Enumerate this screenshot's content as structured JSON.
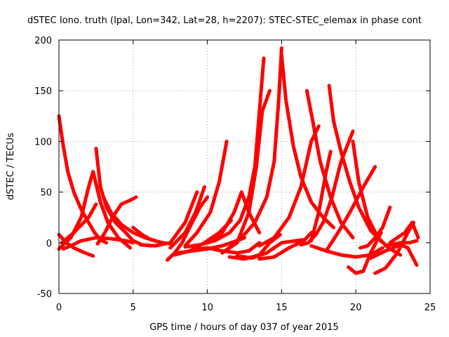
{
  "chart_data": {
    "type": "scatter",
    "title": "dSTEC Iono. truth (Ipal, Lon=342, Lat=28, h=2207): STEC-STEC_elemax in phase cont",
    "xlabel": "GPS time / hours of day 037 of year 2015",
    "ylabel": "dSTEC  / TECUs",
    "xlim": [
      0,
      25
    ],
    "ylim": [
      -50,
      200
    ],
    "xticks": [
      0,
      5,
      10,
      15,
      20,
      25
    ],
    "yticks": [
      -50,
      0,
      50,
      100,
      150,
      200
    ],
    "grid": true,
    "marker": "+",
    "series_color": "#ff0000",
    "series": [
      {
        "x": [
          0,
          0.3,
          0.6,
          1.0,
          1.5,
          2.0,
          2.4,
          2.8,
          3.2
        ],
        "y": [
          125,
          95,
          70,
          50,
          33,
          20,
          10,
          3,
          0
        ]
      },
      {
        "x": [
          0,
          0.8,
          1.5,
          2.0,
          2.3
        ],
        "y": [
          -6,
          5,
          25,
          55,
          70
        ]
      },
      {
        "x": [
          2.3,
          2.8,
          3.3,
          4.0,
          4.8
        ],
        "y": [
          70,
          40,
          20,
          5,
          -5
        ]
      },
      {
        "x": [
          2.5,
          2.8,
          3.2,
          3.8,
          4.5,
          5.0,
          5.6,
          6.2
        ],
        "y": [
          93,
          55,
          35,
          20,
          10,
          2,
          -2,
          -3
        ]
      },
      {
        "x": [
          0.3,
          0.8,
          1.5,
          2.5,
          3.5,
          4.5,
          5.0
        ],
        "y": [
          -6,
          -3,
          2,
          5,
          4,
          2,
          0
        ]
      },
      {
        "x": [
          0,
          0.5,
          1.0,
          1.6,
          2.3
        ],
        "y": [
          8,
          0,
          -5,
          -9,
          -13
        ]
      },
      {
        "x": [
          0.2,
          1.0,
          2.0,
          2.5
        ],
        "y": [
          0,
          10,
          25,
          38
        ]
      },
      {
        "x": [
          2.6,
          3.1,
          3.6,
          4.2,
          4.8,
          5.2
        ],
        "y": [
          -1,
          10,
          25,
          38,
          42,
          45
        ]
      },
      {
        "x": [
          3.0,
          3.5,
          4.2,
          5.0,
          5.8,
          6.5
        ],
        "y": [
          45,
          30,
          18,
          10,
          5,
          2
        ]
      },
      {
        "x": [
          5.0,
          5.6,
          6.2,
          7.0,
          7.5
        ],
        "y": [
          15,
          8,
          3,
          0,
          -1
        ]
      },
      {
        "x": [
          5.5,
          6.5,
          7.5,
          8.5,
          9.3
        ],
        "y": [
          -2,
          -3,
          0,
          20,
          50
        ]
      },
      {
        "x": [
          7.3,
          7.8,
          8.3,
          8.8,
          9.5,
          10.0
        ],
        "y": [
          -17,
          -10,
          0,
          15,
          35,
          45
        ]
      },
      {
        "x": [
          7.5,
          8.5,
          9.2,
          9.8
        ],
        "y": [
          -5,
          10,
          30,
          55
        ]
      },
      {
        "x": [
          8.5,
          9.3,
          10.2,
          10.8,
          11.3
        ],
        "y": [
          -3,
          10,
          30,
          60,
          100
        ]
      },
      {
        "x": [
          7.8,
          8.8,
          9.8,
          10.8,
          11.6
        ],
        "y": [
          -12,
          -8,
          0,
          10,
          22
        ]
      },
      {
        "x": [
          8.0,
          9.0,
          10.0,
          11.0,
          12.0,
          12.5
        ],
        "y": [
          -10,
          -8,
          -6,
          -3,
          2,
          5
        ]
      },
      {
        "x": [
          10.0,
          11.0,
          11.8,
          12.3,
          12.8,
          13.5
        ],
        "y": [
          0,
          10,
          30,
          50,
          30,
          10
        ]
      },
      {
        "x": [
          8.5,
          9.5,
          10.5,
          11.5,
          12.2,
          12.8,
          13.2,
          13.8
        ],
        "y": [
          -4,
          -2,
          2,
          10,
          22,
          45,
          75,
          182
        ]
      },
      {
        "x": [
          9.0,
          10.0,
          11.0,
          12.0,
          12.8,
          13.5
        ],
        "y": [
          -7,
          -5,
          -8,
          -10,
          -8,
          0
        ]
      },
      {
        "x": [
          11.0,
          12.0,
          12.8,
          13.3,
          13.7,
          14.2
        ],
        "y": [
          -10,
          0,
          30,
          75,
          130,
          150
        ]
      },
      {
        "x": [
          11.2,
          12.3,
          13.2,
          14.0,
          14.5,
          14.8,
          15.0
        ],
        "y": [
          -8,
          5,
          20,
          45,
          80,
          140,
          192
        ]
      },
      {
        "x": [
          11.5,
          12.5,
          13.5,
          14.2,
          14.9
        ],
        "y": [
          -14,
          -16,
          -12,
          0,
          8
        ]
      },
      {
        "x": [
          12.0,
          13.0,
          14.0,
          15.0,
          16.0,
          16.5
        ],
        "y": [
          -13,
          -15,
          -10,
          0,
          2,
          3
        ]
      },
      {
        "x": [
          13.5,
          14.5,
          15.5,
          16.5,
          17.0
        ],
        "y": [
          -16,
          -14,
          -5,
          2,
          10
        ]
      },
      {
        "x": [
          15.0,
          15.3,
          15.8,
          16.3,
          17.0,
          17.8,
          18.5
        ],
        "y": [
          185,
          140,
          95,
          65,
          40,
          25,
          15
        ]
      },
      {
        "x": [
          13.5,
          14.5,
          15.5,
          16.3,
          17.0,
          17.5
        ],
        "y": [
          -3,
          5,
          25,
          55,
          100,
          115
        ]
      },
      {
        "x": [
          16.3,
          16.8,
          17.3,
          17.8,
          18.4,
          19.0,
          19.8
        ],
        "y": [
          -2,
          0,
          8,
          20,
          45,
          80,
          110
        ]
      },
      {
        "x": [
          16.7,
          17.1,
          17.6,
          18.3,
          19.0,
          19.8
        ],
        "y": [
          150,
          120,
          80,
          45,
          20,
          5
        ]
      },
      {
        "x": [
          17.0,
          17.5,
          18.0,
          18.3
        ],
        "y": [
          2,
          30,
          70,
          90
        ]
      },
      {
        "x": [
          18.2,
          18.5,
          19.0,
          19.6,
          20.2,
          21.0,
          21.8
        ],
        "y": [
          155,
          120,
          90,
          60,
          35,
          12,
          0
        ]
      },
      {
        "x": [
          18.0,
          18.8,
          19.6,
          20.5,
          21.3
        ],
        "y": [
          -8,
          10,
          30,
          55,
          75
        ]
      },
      {
        "x": [
          19.8,
          20.2,
          20.8,
          21.5,
          22.2,
          23.0
        ],
        "y": [
          100,
          60,
          25,
          5,
          -5,
          -12
        ]
      },
      {
        "x": [
          17.0,
          18.0,
          19.0,
          20.0,
          21.0,
          21.8
        ],
        "y": [
          -3,
          -8,
          -12,
          -14,
          -12,
          -5
        ]
      },
      {
        "x": [
          19.5,
          20.0,
          20.5,
          21.0,
          21.7
        ],
        "y": [
          -24,
          -30,
          -28,
          -10,
          10
        ]
      },
      {
        "x": [
          20.3,
          20.8,
          21.3,
          21.8,
          22.3
        ],
        "y": [
          -5,
          -3,
          5,
          15,
          35
        ]
      },
      {
        "x": [
          21.3,
          22.0,
          22.8,
          23.5,
          23.9
        ],
        "y": [
          -30,
          -25,
          -10,
          10,
          20
        ]
      },
      {
        "x": [
          22.3,
          22.8,
          23.3,
          23.8,
          24.2
        ],
        "y": [
          0,
          5,
          10,
          20,
          5
        ]
      },
      {
        "x": [
          21.0,
          22.0,
          23.0,
          23.5,
          24.1
        ],
        "y": [
          -15,
          -8,
          -2,
          -5,
          -22
        ]
      },
      {
        "x": [
          22.0,
          23.0,
          23.6,
          24.1
        ],
        "y": [
          -3,
          0,
          0,
          2
        ]
      }
    ]
  }
}
